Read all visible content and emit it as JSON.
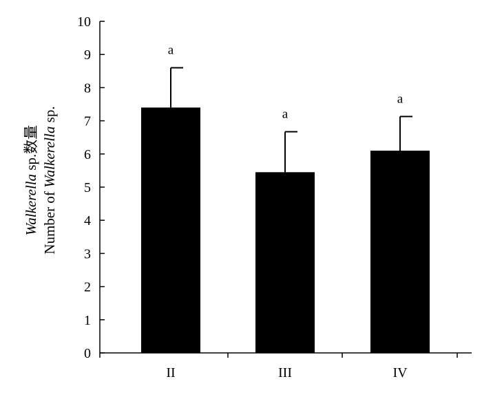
{
  "chart_data": {
    "type": "bar",
    "categories": [
      "II",
      "III",
      "IV"
    ],
    "values": [
      7.4,
      5.45,
      6.1
    ],
    "errors": [
      1.2,
      1.22,
      1.03
    ],
    "significance": [
      "a",
      "a",
      "a"
    ],
    "title": "",
    "xlabel": "",
    "ylabel_line1_italic": "Walkerella",
    "ylabel_line1_rest": " sp.数量",
    "ylabel_line2_prefix": "Number of ",
    "ylabel_line2_italic": "Walkerella",
    "ylabel_line2_suffix": " sp.",
    "ylim": [
      0,
      10
    ],
    "yticks": [
      "0",
      "1",
      "2",
      "3",
      "4",
      "5",
      "6",
      "7",
      "8",
      "9",
      "10"
    ],
    "grid": false,
    "bar_color": "#000000"
  }
}
